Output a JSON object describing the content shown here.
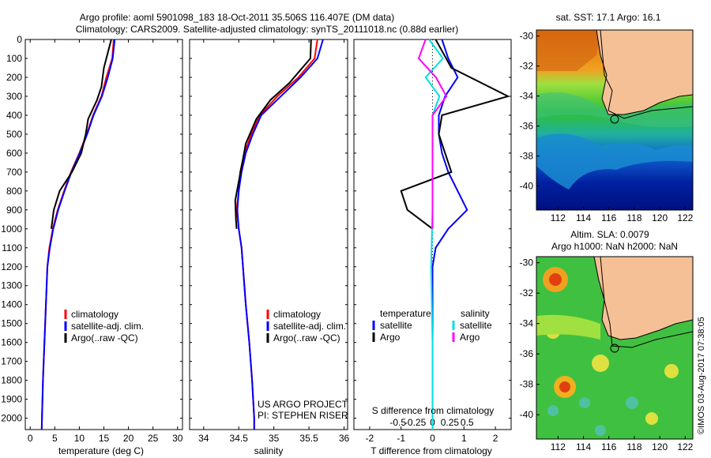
{
  "header": {
    "line1": "Argo profile: aoml 5901098_183 18-Oct-2011 35.506S 116.407E (DM data)",
    "line2": "Climatology: CARS2009. Satellite-adjusted climatology: synTS_20111018.nc (0.88d earlier)"
  },
  "colors": {
    "clim": "#ff0000",
    "sat": "#0000ff",
    "argo": "#000000",
    "sal_sat": "#00e0e0",
    "sal_argo": "#ff00ff",
    "land": "#f5c096"
  },
  "depth_ticks": [
    "0",
    "100",
    "200",
    "300",
    "400",
    "500",
    "600",
    "700",
    "800",
    "900",
    "1000",
    "1100",
    "1200",
    "1300",
    "1400",
    "1500",
    "1600",
    "1700",
    "1800",
    "1900",
    "2000"
  ],
  "temp_panel": {
    "xlabel": "temperature (deg C)",
    "xticks": [
      "0",
      "5",
      "10",
      "15",
      "20",
      "25",
      "30"
    ],
    "legend": [
      "climatology",
      "satellite-adj. clim.",
      "Argo(..raw -QC)"
    ]
  },
  "sal_panel": {
    "xlabel": "salinity",
    "xticks": [
      "34",
      "34.5",
      "35",
      "35.5",
      "36"
    ],
    "legend": [
      "climatology",
      "satellite-adj. clim.",
      "Argo(..raw -QC)"
    ],
    "note1": "US ARGO PROJECT",
    "note2": "PI: STEPHEN RISER"
  },
  "diff_panel": {
    "xlabel": "T difference from climatology",
    "top_label": "S difference from climatology",
    "t_xticks": [
      "-2",
      "-1",
      "0",
      "1",
      "2"
    ],
    "s_xticks": [
      "-0.5",
      "-0.25",
      "0",
      "0.25",
      "0.5"
    ],
    "legend_temp_title": "temperature",
    "legend_temp": [
      "satellite",
      "Argo"
    ],
    "legend_sal_title": "salinity",
    "legend_sal": [
      "satellite",
      "Argo"
    ]
  },
  "map1": {
    "title": "sat. SST: 17.1  Argo: 16.1",
    "yticks": [
      "-30",
      "-32",
      "-34",
      "-36",
      "-38",
      "-40"
    ],
    "xticks": [
      "112",
      "114",
      "116",
      "118",
      "120",
      "122"
    ]
  },
  "map2": {
    "title1": "Altim. SLA: 0.0079",
    "title2": "Argo h1000: NaN h2000: NaN",
    "yticks": [
      "-30",
      "-32",
      "-34",
      "-36",
      "-38",
      "-40"
    ],
    "xticks": [
      "112",
      "114",
      "116",
      "118",
      "120",
      "122"
    ]
  },
  "credit": "©IMOS 03-Aug-2017 07:38:05",
  "chart_data": [
    {
      "type": "line",
      "xlabel": "temperature (deg C)",
      "ylabel": "",
      "xlim": [
        -1,
        31
      ],
      "ylim": [
        2060,
        0
      ],
      "series": [
        {
          "name": "climatology",
          "points": [
            [
              17.0,
              0
            ],
            [
              16.7,
              100
            ],
            [
              15.5,
              200
            ],
            [
              14.5,
              300
            ],
            [
              12.8,
              400
            ],
            [
              11.5,
              500
            ],
            [
              10.0,
              600
            ],
            [
              8.3,
              700
            ],
            [
              6.9,
              800
            ],
            [
              5.6,
              900
            ],
            [
              4.6,
              1000
            ],
            [
              3.9,
              1100
            ],
            [
              3.5,
              1200
            ],
            [
              3.2,
              1400
            ],
            [
              2.9,
              1600
            ],
            [
              2.6,
              1800
            ],
            [
              2.4,
              2000
            ],
            [
              2.35,
              2060
            ]
          ]
        },
        {
          "name": "satellite-adj. clim.",
          "points": [
            [
              17.2,
              0
            ],
            [
              16.8,
              100
            ],
            [
              15.8,
              200
            ],
            [
              14.6,
              300
            ],
            [
              12.9,
              400
            ],
            [
              11.6,
              500
            ],
            [
              10.1,
              600
            ],
            [
              8.4,
              700
            ],
            [
              7.0,
              800
            ],
            [
              5.7,
              900
            ],
            [
              4.7,
              1000
            ],
            [
              4.0,
              1100
            ],
            [
              3.5,
              1200
            ],
            [
              3.2,
              1400
            ],
            [
              2.9,
              1600
            ],
            [
              2.6,
              1800
            ],
            [
              2.4,
              2000
            ],
            [
              2.35,
              2060
            ]
          ]
        },
        {
          "name": "Argo(..raw -QC)",
          "points": [
            [
              16.5,
              0
            ],
            [
              16.0,
              50
            ],
            [
              15.0,
              150
            ],
            [
              14.5,
              250
            ],
            [
              13.6,
              320
            ],
            [
              11.8,
              420
            ],
            [
              11.3,
              500
            ],
            [
              10.4,
              600
            ],
            [
              8.5,
              700
            ],
            [
              6.0,
              800
            ],
            [
              4.8,
              900
            ],
            [
              4.3,
              1000
            ]
          ]
        }
      ]
    },
    {
      "type": "line",
      "xlabel": "salinity",
      "ylabel": "",
      "xlim": [
        33.8,
        36.05
      ],
      "ylim": [
        2060,
        0
      ],
      "series": [
        {
          "name": "climatology",
          "points": [
            [
              35.62,
              0
            ],
            [
              35.58,
              100
            ],
            [
              35.35,
              200
            ],
            [
              35.05,
              300
            ],
            [
              34.8,
              400
            ],
            [
              34.68,
              500
            ],
            [
              34.58,
              600
            ],
            [
              34.52,
              700
            ],
            [
              34.5,
              800
            ],
            [
              34.47,
              900
            ],
            [
              34.5,
              1000
            ],
            [
              34.54,
              1100
            ],
            [
              34.56,
              1200
            ],
            [
              34.6,
              1400
            ],
            [
              34.65,
              1600
            ],
            [
              34.69,
              1800
            ],
            [
              34.72,
              2000
            ],
            [
              34.72,
              2060
            ]
          ]
        },
        {
          "name": "satellite-adj. clim.",
          "points": [
            [
              35.7,
              0
            ],
            [
              35.62,
              100
            ],
            [
              35.38,
              200
            ],
            [
              35.1,
              300
            ],
            [
              34.82,
              400
            ],
            [
              34.7,
              500
            ],
            [
              34.6,
              600
            ],
            [
              34.54,
              700
            ],
            [
              34.5,
              800
            ],
            [
              34.48,
              900
            ],
            [
              34.5,
              1000
            ],
            [
              34.54,
              1100
            ],
            [
              34.56,
              1200
            ],
            [
              34.6,
              1400
            ],
            [
              34.65,
              1600
            ],
            [
              34.69,
              1800
            ],
            [
              34.72,
              2000
            ],
            [
              34.72,
              2060
            ]
          ]
        },
        {
          "name": "Argo(..raw -QC)",
          "points": [
            [
              35.53,
              0
            ],
            [
              35.52,
              100
            ],
            [
              35.22,
              230
            ],
            [
              34.95,
              320
            ],
            [
              34.75,
              420
            ],
            [
              34.6,
              550
            ],
            [
              34.55,
              650
            ],
            [
              34.5,
              750
            ],
            [
              34.45,
              850
            ],
            [
              34.46,
              950
            ],
            [
              34.47,
              1000
            ]
          ]
        }
      ]
    },
    {
      "type": "line",
      "xlabel": "T difference from climatology",
      "ylabel": "",
      "xlim": [
        -2.5,
        2.5
      ],
      "ylim": [
        2060,
        0
      ],
      "series": [
        {
          "name": "temperature satellite",
          "points": [
            [
              0.3,
              0
            ],
            [
              0.5,
              100
            ],
            [
              0.8,
              200
            ],
            [
              0.4,
              300
            ],
            [
              0.2,
              400
            ],
            [
              0.2,
              500
            ],
            [
              0.3,
              600
            ],
            [
              0.5,
              700
            ],
            [
              0.8,
              800
            ],
            [
              1.1,
              900
            ],
            [
              0.5,
              1000
            ],
            [
              0.1,
              1100
            ],
            [
              0,
              1200
            ],
            [
              0,
              2060
            ]
          ]
        },
        {
          "name": "temperature Argo",
          "points": [
            [
              0.1,
              0
            ],
            [
              0.6,
              150
            ],
            [
              2.4,
              300
            ],
            [
              0.3,
              400
            ],
            [
              0.2,
              500
            ],
            [
              0.4,
              600
            ],
            [
              0.6,
              700
            ],
            [
              -1.0,
              800
            ],
            [
              -0.8,
              900
            ],
            [
              0,
              1000
            ]
          ]
        },
        {
          "name": "salinity satellite",
          "points": [
            [
              -0.05,
              0
            ],
            [
              0.15,
              100
            ],
            [
              -0.1,
              200
            ],
            [
              0.1,
              300
            ],
            [
              0,
              400
            ],
            [
              0,
              600
            ],
            [
              0,
              900
            ],
            [
              -0.02,
              1200
            ],
            [
              0,
              1600
            ],
            [
              0,
              2060
            ]
          ]
        },
        {
          "name": "salinity Argo",
          "points": [
            [
              -0.1,
              0
            ],
            [
              -0.2,
              100
            ],
            [
              0.05,
              200
            ],
            [
              0.2,
              300
            ],
            [
              0,
              400
            ],
            [
              0,
              600
            ],
            [
              0,
              800
            ],
            [
              0,
              1000
            ]
          ]
        }
      ]
    }
  ]
}
